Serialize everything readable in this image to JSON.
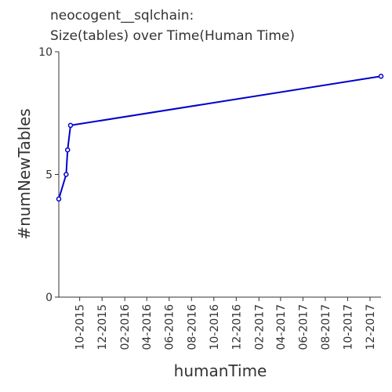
{
  "chart_data": {
    "type": "line",
    "title": "neocogent__sqlchain:",
    "subtitle": "Size(tables) over Time(Human Time)",
    "xlabel": "humanTime",
    "ylabel": "#numNewTables",
    "x_ticks": [
      "10-2015",
      "12-2015",
      "02-2016",
      "04-2016",
      "06-2016",
      "08-2016",
      "10-2016",
      "12-2016",
      "02-2017",
      "04-2017",
      "06-2017",
      "08-2017",
      "10-2017",
      "12-2017"
    ],
    "y_ticks": [
      "0",
      "5",
      "10"
    ],
    "ylim": [
      0,
      10
    ],
    "xlim": [
      "2015-08-05",
      "2017-12-31"
    ],
    "grid": false,
    "series": [
      {
        "color": "#0000cc",
        "points": [
          {
            "x": "2015-08-05",
            "y": 4
          },
          {
            "x": "2015-08-25",
            "y": 5
          },
          {
            "x": "2015-08-29",
            "y": 6
          },
          {
            "x": "2015-09-06",
            "y": 7
          },
          {
            "x": "2017-12-31",
            "y": 9
          }
        ]
      }
    ]
  }
}
